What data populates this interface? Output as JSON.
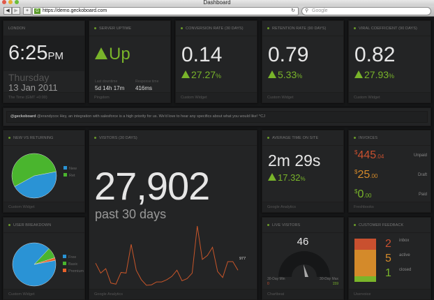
{
  "browser": {
    "title": "Dashboard",
    "url": "https://demo.geckoboard.com",
    "search_placeholder": "Google"
  },
  "clock": {
    "title": "London",
    "time": "6:25",
    "ampm": "PM",
    "day": "Thursday",
    "date": "13 Jan 2011",
    "footer": "The Time (GMT +0:00)"
  },
  "uptime": {
    "title": "Server Uptime",
    "status": "Up",
    "downtime_label": "Last downtime",
    "downtime": "5d 14h 17m",
    "response_label": "Response time",
    "response": "416ms",
    "footer": "Pingdom"
  },
  "conversion": {
    "title": "Conversion Rate (30 days)",
    "value": "0.14",
    "change": "27.27",
    "pct": "%",
    "footer": "Custom Widget"
  },
  "retention": {
    "title": "Retention Rate (90 days)",
    "value": "0.79",
    "change": "5.33",
    "pct": "%",
    "footer": "Custom Widget"
  },
  "viral": {
    "title": "Viral Coefficient (90 days)",
    "value": "0.82",
    "change": "27.93",
    "pct": "%",
    "footer": "Custom Widget"
  },
  "tweet": {
    "user": "@geckoboard",
    "text": "@erandycox Hey, an integration with salesforce is a high priority for us. We'd love to hear any specifics about what you would like! ^CJ"
  },
  "new_returning": {
    "title": "New vs Returning",
    "legend": [
      "New",
      "Ret"
    ],
    "values": [
      45,
      55
    ],
    "colors": [
      "#2a93d5",
      "#4ab52e"
    ],
    "footer": "Custom Widget"
  },
  "visitors": {
    "title": "Visitors (30 days)",
    "value": "27,902",
    "sub": "past 30 days",
    "last_label": "977",
    "series": [
      440,
      260,
      340,
      80,
      60,
      272,
      260,
      780,
      312,
      140,
      40,
      48,
      100,
      100,
      140,
      200,
      312,
      120,
      160,
      260,
      1112,
      508,
      580,
      728,
      288,
      180,
      468,
      468,
      312
    ],
    "line_color": "#c8562a",
    "footer": "Google Analytics"
  },
  "avg_time": {
    "title": "Average Time on Site",
    "value": "2m 29s",
    "change": "17.32",
    "pct": "%",
    "footer": "Google Analytics"
  },
  "invoices": {
    "title": "Invoices",
    "footer": "Freshbooks",
    "rows": [
      {
        "cur": "$",
        "whole": "445",
        "cents": ".04",
        "label": "Unpaid",
        "color": "#c9502f"
      },
      {
        "cur": "$",
        "whole": "25",
        "cents": ".00",
        "label": "Draft",
        "color": "#d48a2a"
      },
      {
        "cur": "$",
        "whole": "0",
        "cents": ".00",
        "label": "Paid",
        "color": "#7ab52a"
      }
    ]
  },
  "user_breakdown": {
    "title": "User Breakdown",
    "legend": [
      "Free",
      "Basic",
      "Premium"
    ],
    "values": [
      90,
      8,
      2
    ],
    "colors": [
      "#2a93d5",
      "#4ab52e",
      "#e8612a"
    ],
    "footer": "Custom Widget"
  },
  "live": {
    "title": "Live Visitors",
    "value": "46",
    "min_label": "30-Day Min",
    "min": "0",
    "max_label": "30-Day Max",
    "max": "159",
    "footer": "Chartbeat"
  },
  "feedback": {
    "title": "Customer Feedback",
    "footer": "Uservoice",
    "rows": [
      {
        "count": "2",
        "label": "inbox",
        "color": "#c9502f"
      },
      {
        "count": "5",
        "label": "active",
        "color": "#d48a2a"
      },
      {
        "count": "1",
        "label": "closed",
        "color": "#7ab52a"
      }
    ]
  }
}
